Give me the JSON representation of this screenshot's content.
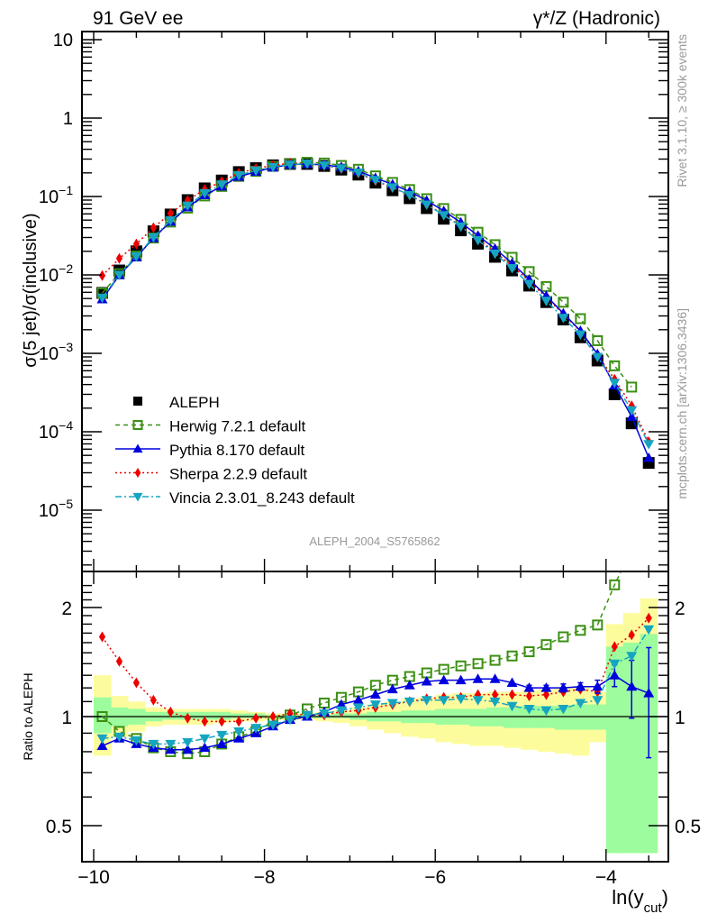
{
  "chart_data": [
    {
      "type": "scatter",
      "panel": "main",
      "title_left": "91 GeV ee",
      "title_right": "γ*/Z (Hadronic)",
      "ylabel": "σ(5 jet)/σ(inclusive)",
      "xlabel": "ln(y_cut)",
      "yscale": "log",
      "xlim": [
        -10.15,
        -3.3
      ],
      "ylim": [
        2.3e-06,
        13
      ],
      "y_ticks": [
        {
          "v": 10,
          "label": "10"
        },
        {
          "v": 1,
          "label": "1"
        },
        {
          "v": 0.1,
          "label": "10",
          "exp": "−1"
        },
        {
          "v": 0.01,
          "label": "10",
          "exp": "−2"
        },
        {
          "v": 0.001,
          "label": "10",
          "exp": "−3"
        },
        {
          "v": 0.0001,
          "label": "10",
          "exp": "−4"
        },
        {
          "v": 1e-05,
          "label": "10",
          "exp": "−5"
        }
      ],
      "watermark": "ALEPH_2004_S5765862",
      "side_label_top": "Rivet 3.1.10, ≥ 300k events",
      "side_label_bottom": "mcplots.cern.ch [arXiv:1306.3436]",
      "legend_position": "lower-left",
      "x": [
        -9.9,
        -9.7,
        -9.5,
        -9.3,
        -9.1,
        -8.9,
        -8.7,
        -8.5,
        -8.3,
        -8.1,
        -7.9,
        -7.7,
        -7.5,
        -7.3,
        -7.1,
        -6.9,
        -6.7,
        -6.5,
        -6.3,
        -6.1,
        -5.9,
        -5.7,
        -5.5,
        -5.3,
        -5.1,
        -4.9,
        -4.7,
        -4.5,
        -4.3,
        -4.1,
        -3.9,
        -3.7,
        -3.5
      ],
      "data": {
        "name": "ALEPH",
        "values": [
          0.0059,
          0.0114,
          0.02,
          0.036,
          0.059,
          0.09,
          0.127,
          0.16,
          0.205,
          0.23,
          0.25,
          0.26,
          0.26,
          0.245,
          0.22,
          0.19,
          0.15,
          0.12,
          0.095,
          0.071,
          0.052,
          0.037,
          0.025,
          0.017,
          0.0114,
          0.0073,
          0.0045,
          0.0027,
          0.0016,
          0.00081,
          0.0003,
          0.000128,
          4e-05
        ]
      },
      "series": [
        {
          "name": "ALEPH",
          "color": "#000000",
          "marker": "square-filled",
          "line": "none"
        },
        {
          "name": "Herwig 7.2.1 default",
          "color": "#3a8f12",
          "marker": "square-open",
          "line": "dashed"
        },
        {
          "name": "Pythia 8.170 default",
          "color": "#0000dd",
          "marker": "triangle-up",
          "line": "solid"
        },
        {
          "name": "Sherpa 2.2.9 default",
          "color": "#ee0000",
          "marker": "diamond",
          "line": "dotted"
        },
        {
          "name": "Vincia 2.3.01_8.243 default",
          "color": "#16a5c0",
          "marker": "triangle-down",
          "line": "dashdot"
        }
      ]
    },
    {
      "type": "scatter",
      "panel": "ratio",
      "ylabel": "Ratio to ALEPH",
      "xlabel": "ln(y_cut)",
      "yscale": "log",
      "xlim": [
        -10.15,
        -3.3
      ],
      "ylim": [
        0.42,
        2.35
      ],
      "x_ticks": [
        {
          "v": -10,
          "label": "−10"
        },
        {
          "v": -8,
          "label": "−8"
        },
        {
          "v": -6,
          "label": "−6"
        },
        {
          "v": -4,
          "label": "−4"
        }
      ],
      "y_ticks": [
        {
          "v": 2,
          "label": "2"
        },
        {
          "v": 1,
          "label": "1"
        },
        {
          "v": 0.5,
          "label": "0.5"
        }
      ],
      "band_inner_color": "#9dfc9d",
      "band_outer_color": "#fdfc9d",
      "band_inner": [
        [
          0.9,
          1.13
        ],
        [
          0.94,
          1.06
        ],
        [
          0.95,
          1.05
        ],
        [
          0.97,
          1.03
        ],
        [
          0.98,
          1.03
        ],
        [
          0.98,
          1.03
        ],
        [
          0.98,
          1.03
        ],
        [
          0.98,
          1.03
        ],
        [
          0.99,
          1.02
        ],
        [
          0.99,
          1.02
        ],
        [
          0.99,
          1.01
        ],
        [
          0.99,
          1.01
        ],
        [
          0.99,
          1.01
        ],
        [
          0.99,
          1.01
        ],
        [
          0.99,
          1.02
        ],
        [
          0.98,
          1.02
        ],
        [
          0.97,
          1.03
        ],
        [
          0.97,
          1.03
        ],
        [
          0.96,
          1.04
        ],
        [
          0.96,
          1.04
        ],
        [
          0.95,
          1.05
        ],
        [
          0.95,
          1.05
        ],
        [
          0.94,
          1.05
        ],
        [
          0.94,
          1.06
        ],
        [
          0.93,
          1.06
        ],
        [
          0.93,
          1.07
        ],
        [
          0.93,
          1.07
        ],
        [
          0.92,
          1.07
        ],
        [
          0.92,
          1.08
        ],
        [
          0.92,
          1.08
        ],
        [
          0.42,
          1.56
        ],
        [
          0.42,
          1.6
        ],
        [
          0.42,
          1.69
        ]
      ],
      "band_outer": [
        [
          0.78,
          1.3
        ],
        [
          0.88,
          1.14
        ],
        [
          0.91,
          1.1
        ],
        [
          0.94,
          1.06
        ],
        [
          0.95,
          1.05
        ],
        [
          0.95,
          1.05
        ],
        [
          0.95,
          1.05
        ],
        [
          0.96,
          1.05
        ],
        [
          0.97,
          1.04
        ],
        [
          0.97,
          1.03
        ],
        [
          0.98,
          1.02
        ],
        [
          0.98,
          1.02
        ],
        [
          0.98,
          1.02
        ],
        [
          0.97,
          1.03
        ],
        [
          0.96,
          1.04
        ],
        [
          0.94,
          1.06
        ],
        [
          0.92,
          1.08
        ],
        [
          0.9,
          1.1
        ],
        [
          0.88,
          1.12
        ],
        [
          0.87,
          1.13
        ],
        [
          0.85,
          1.15
        ],
        [
          0.84,
          1.16
        ],
        [
          0.83,
          1.16
        ],
        [
          0.83,
          1.17
        ],
        [
          0.82,
          1.17
        ],
        [
          0.81,
          1.18
        ],
        [
          0.8,
          1.19
        ],
        [
          0.79,
          1.2
        ],
        [
          0.78,
          1.21
        ],
        [
          0.85,
          1.17
        ],
        [
          0.42,
          1.8
        ],
        [
          0.42,
          1.93
        ],
        [
          0.42,
          2.12
        ]
      ],
      "reference_line": 1,
      "ratio_series": [
        {
          "name": "Herwig 7.2.1 default",
          "values": [
            1.0,
            0.91,
            0.87,
            0.82,
            0.8,
            0.79,
            0.8,
            0.84,
            0.88,
            0.91,
            0.97,
            1.01,
            1.05,
            1.09,
            1.13,
            1.17,
            1.22,
            1.26,
            1.29,
            1.32,
            1.35,
            1.38,
            1.4,
            1.43,
            1.47,
            1.51,
            1.58,
            1.66,
            1.73,
            1.79,
            2.31,
            2.9,
            null
          ]
        },
        {
          "name": "Pythia 8.170 default",
          "values": [
            0.83,
            0.87,
            0.84,
            0.82,
            0.81,
            0.81,
            0.82,
            0.84,
            0.87,
            0.9,
            0.94,
            0.98,
            1.0,
            1.03,
            1.08,
            1.11,
            1.15,
            1.19,
            1.22,
            1.25,
            1.26,
            1.26,
            1.27,
            1.27,
            1.24,
            1.2,
            1.2,
            1.2,
            1.21,
            1.21,
            1.3,
            1.21,
            1.16
          ],
          "errors": [
            0,
            0,
            0,
            0,
            0,
            0,
            0,
            0,
            0,
            0,
            0,
            0,
            0,
            0,
            0,
            0,
            0,
            0,
            0,
            0,
            0,
            0,
            0,
            0,
            0,
            0.02,
            0.02,
            0.03,
            0.03,
            0.05,
            0.09,
            0.22,
            0.39
          ]
        },
        {
          "name": "Sherpa 2.2.9 default",
          "values": [
            1.66,
            1.42,
            1.24,
            1.11,
            1.03,
            0.99,
            0.97,
            0.97,
            0.97,
            0.99,
            1.0,
            1.02,
            1.01,
            1.01,
            1.03,
            1.04,
            1.06,
            1.08,
            1.1,
            1.12,
            1.13,
            1.13,
            1.15,
            1.15,
            1.15,
            1.14,
            1.15,
            1.17,
            1.19,
            1.17,
            1.56,
            1.68,
            1.87
          ]
        },
        {
          "name": "Vincia 2.3.01_8.243 default",
          "values": [
            0.87,
            0.88,
            0.86,
            0.84,
            0.84,
            0.85,
            0.87,
            0.89,
            0.91,
            0.93,
            0.95,
            0.98,
            1.01,
            1.02,
            1.04,
            1.06,
            1.08,
            1.09,
            1.1,
            1.11,
            1.11,
            1.12,
            1.11,
            1.1,
            1.07,
            1.05,
            1.04,
            1.05,
            1.09,
            1.11,
            1.4,
            1.47,
            1.74
          ]
        }
      ]
    }
  ]
}
